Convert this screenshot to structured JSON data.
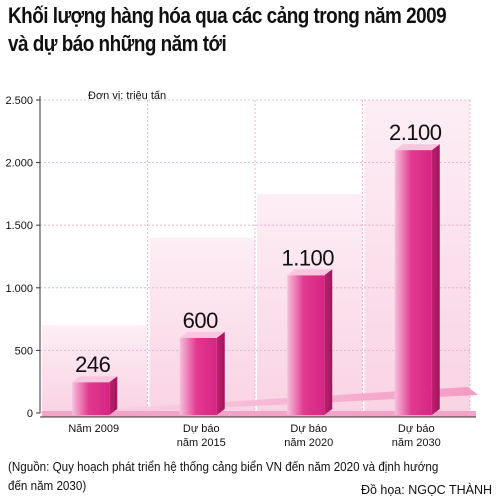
{
  "title_lines": [
    "Khối lượng hàng hóa qua các cảng trong năm 2009",
    "và dự báo những năm tới"
  ],
  "source": "(Nguồn: Quy hoạch phát triển hệ thống cảng biển VN đến năm 2020 và định hướng đến năm 2030)",
  "credit": "Đồ họa: NGỌC THÀNH",
  "chart_data": {
    "type": "bar",
    "title": "Khối lượng hàng hóa qua các cảng trong năm 2009 và dự báo những năm tới",
    "unit_label": "Đơn vị: triệu tấn",
    "categories": [
      [
        "Năm 2009"
      ],
      [
        "Dự báo",
        "năm 2015"
      ],
      [
        "Dự báo",
        "năm 2020"
      ],
      [
        "Dự báo",
        "năm 2030"
      ]
    ],
    "values": [
      246,
      600,
      1100,
      2100
    ],
    "value_labels": [
      "246",
      "600",
      "1.100",
      "2.100"
    ],
    "ylim": [
      0,
      2500
    ],
    "yticks": [
      0,
      500,
      1000,
      1500,
      2000,
      2500
    ],
    "ytick_labels": [
      "0",
      "500",
      "1.000",
      "1.500",
      "2.000",
      "2.500"
    ],
    "grid": true,
    "colors": {
      "bar_front": "#e2398f",
      "bar_light": "#f7bfdc",
      "bar_side": "#c21f72",
      "bar_top": "#f9c6df",
      "panel": "#fbe4ee",
      "floor": "#f5a9cc",
      "grid": "#e8a5c5"
    }
  }
}
